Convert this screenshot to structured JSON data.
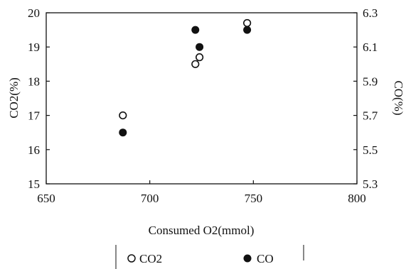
{
  "chart_data": {
    "type": "scatter",
    "title": "",
    "xlabel": "Consumed O2(mmol)",
    "ylabel_left": "CO2(%)",
    "ylabel_right": "CO(%)",
    "xlim": [
      650,
      800
    ],
    "ylim_left": [
      15,
      20
    ],
    "ylim_right": [
      5.3,
      6.3
    ],
    "x_ticks": [
      "650",
      "700",
      "750",
      "800"
    ],
    "y_left_ticks": [
      "15",
      "16",
      "17",
      "18",
      "19",
      "20"
    ],
    "y_right_ticks": [
      "5.3",
      "5.5",
      "5.7",
      "5.9",
      "6.1",
      "6.3"
    ],
    "grid": false,
    "legend_position": "bottom-center",
    "series": [
      {
        "name": "CO2",
        "axis": "left",
        "marker": "open-circle",
        "points": [
          [
            687,
            17.0
          ],
          [
            722,
            18.5
          ],
          [
            724,
            18.7
          ],
          [
            747,
            19.7
          ]
        ]
      },
      {
        "name": "CO",
        "axis": "right",
        "marker": "filled-circle",
        "points": [
          [
            687,
            5.6
          ],
          [
            722,
            6.2
          ],
          [
            724,
            6.1
          ],
          [
            747,
            6.2
          ]
        ]
      }
    ]
  }
}
